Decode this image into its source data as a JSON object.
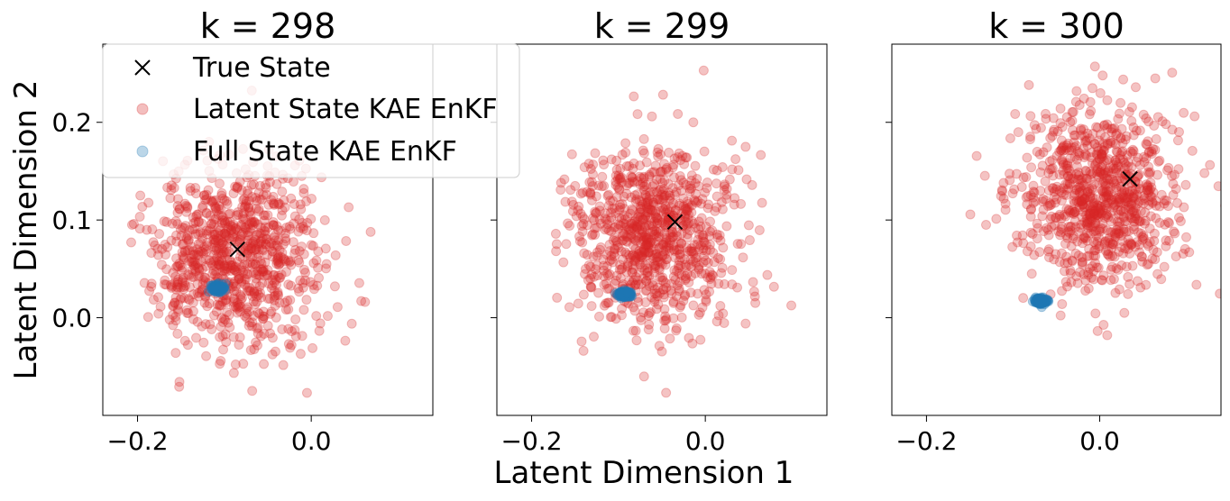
{
  "figure": {
    "xlabel": "Latent Dimension 1",
    "ylabel": "Latent Dimension 2"
  },
  "legend": {
    "placement": "upper-left of first panel",
    "entries": [
      {
        "label": "True State",
        "marker": "x",
        "color": "#000000"
      },
      {
        "label": "Latent State KAE EnKF",
        "marker": "circle",
        "color": "#d62728"
      },
      {
        "label": "Full State KAE EnKF",
        "marker": "circle",
        "color": "#1f77b4"
      }
    ]
  },
  "chart_data": [
    {
      "type": "scatter",
      "title": "k = 298",
      "xlim": [
        -0.24,
        0.14
      ],
      "ylim": [
        -0.1,
        0.28
      ],
      "xticks": [
        -0.2,
        0.0
      ],
      "xtick_labels": [
        "−0.2",
        "0.0"
      ],
      "yticks": [
        0.0,
        0.1,
        0.2
      ],
      "ytick_labels": [
        "0.0",
        "0.1",
        "0.2"
      ],
      "grid": false,
      "series": [
        {
          "name": "Latent State KAE EnKF",
          "color": "#d62728",
          "center": [
            -0.088,
            0.065
          ],
          "std": [
            0.048,
            0.045
          ],
          "count": 900,
          "seed": 298
        },
        {
          "name": "Full State KAE EnKF",
          "color": "#1f77b4",
          "center": [
            -0.108,
            0.03
          ],
          "std": [
            0.004,
            0.0018
          ],
          "count": 120,
          "seed": 2981
        },
        {
          "name": "True State",
          "color": "#000000",
          "points": [
            [
              -0.085,
              0.07
            ]
          ]
        }
      ]
    },
    {
      "type": "scatter",
      "title": "k = 299",
      "xlim": [
        -0.24,
        0.14
      ],
      "ylim": [
        -0.1,
        0.28
      ],
      "xticks": [
        -0.2,
        0.0
      ],
      "xtick_labels": [
        "−0.2",
        "0.0"
      ],
      "yticks": [
        0.0,
        0.1,
        0.2
      ],
      "ytick_labels": [
        "0.0",
        "0.1",
        "0.2"
      ],
      "grid": false,
      "series": [
        {
          "name": "Latent State KAE EnKF",
          "color": "#d62728",
          "center": [
            -0.06,
            0.085
          ],
          "std": [
            0.045,
            0.045
          ],
          "count": 900,
          "seed": 299
        },
        {
          "name": "Full State KAE EnKF",
          "color": "#1f77b4",
          "center": [
            -0.093,
            0.024
          ],
          "std": [
            0.004,
            0.0018
          ],
          "count": 120,
          "seed": 2991
        },
        {
          "name": "True State",
          "color": "#000000",
          "points": [
            [
              -0.035,
              0.098
            ]
          ]
        }
      ]
    },
    {
      "type": "scatter",
      "title": "k = 300",
      "xlim": [
        -0.24,
        0.14
      ],
      "ylim": [
        -0.1,
        0.28
      ],
      "xticks": [
        -0.2,
        0.0
      ],
      "xtick_labels": [
        "−0.2",
        "0.0"
      ],
      "yticks": [
        0.0,
        0.1,
        0.2
      ],
      "ytick_labels": [
        "0.0",
        "0.1",
        "0.2"
      ],
      "grid": false,
      "series": [
        {
          "name": "Latent State KAE EnKF",
          "color": "#d62728",
          "center": [
            0.0,
            0.125
          ],
          "std": [
            0.045,
            0.045
          ],
          "count": 900,
          "seed": 300
        },
        {
          "name": "Full State KAE EnKF",
          "color": "#1f77b4",
          "center": [
            -0.069,
            0.017
          ],
          "std": [
            0.0035,
            0.0016
          ],
          "count": 120,
          "seed": 3001
        },
        {
          "name": "True State",
          "color": "#000000",
          "points": [
            [
              0.035,
              0.142
            ]
          ]
        }
      ]
    }
  ]
}
